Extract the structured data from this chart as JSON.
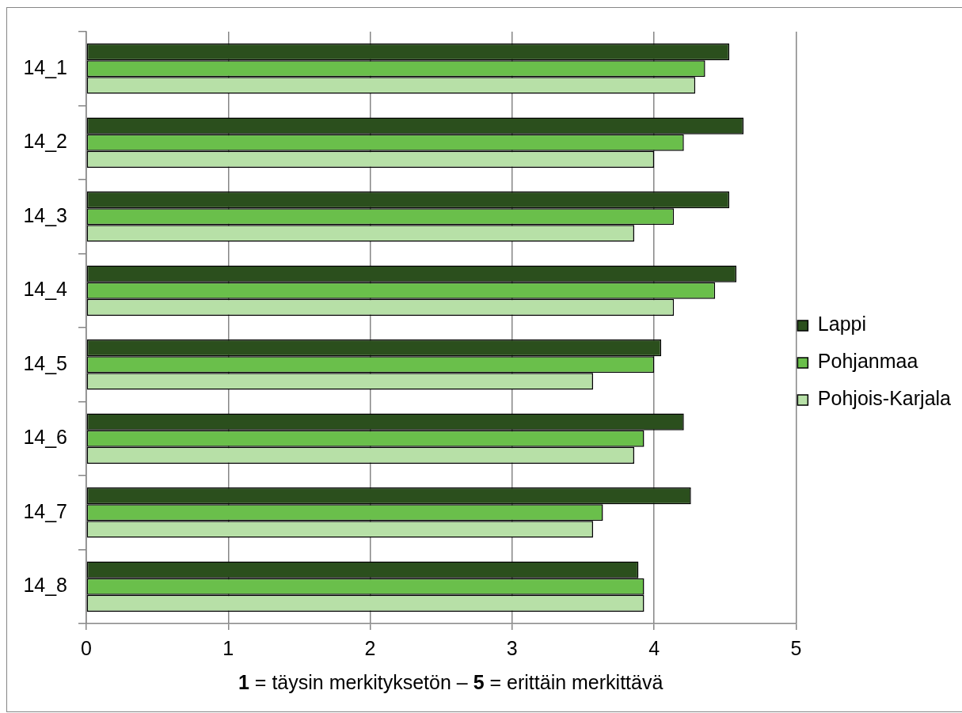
{
  "chart_data": {
    "type": "bar",
    "orientation": "horizontal",
    "xlabel": "1 = täysin merkityksetön – 5 = erittäin merkittävä",
    "categories": [
      "14_1",
      "14_2",
      "14_3",
      "14_4",
      "14_5",
      "14_6",
      "14_7",
      "14_8"
    ],
    "series": [
      {
        "name": "Lappi",
        "color": "#2b4f1d",
        "values": [
          4.53,
          4.63,
          4.53,
          4.58,
          4.05,
          4.21,
          4.26,
          3.89
        ]
      },
      {
        "name": "Pohjanmaa",
        "color": "#6abf4b",
        "values": [
          4.36,
          4.21,
          4.14,
          4.43,
          4.0,
          3.93,
          3.64,
          3.93
        ]
      },
      {
        "name": "Pohjois-Karjala",
        "color": "#b7e0a7",
        "values": [
          4.29,
          4.0,
          3.86,
          4.14,
          3.57,
          3.86,
          3.57,
          3.93
        ]
      }
    ],
    "xlim": [
      0,
      5
    ],
    "xticks": [
      0,
      1,
      2,
      3,
      4,
      5
    ],
    "grid": "x",
    "legend": "right"
  }
}
